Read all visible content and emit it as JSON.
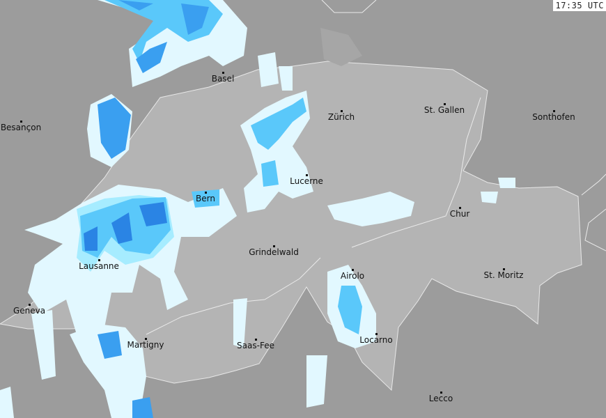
{
  "timestamp": "17:35 UTC",
  "colors": {
    "background": "#9c9c9c",
    "country": "#b4b4b4",
    "border": "#e8e8e8",
    "precip_very_light": "#e2f8ff",
    "precip_light": "#a6ecff",
    "precip_moderate": "#5ac8fa",
    "precip_heavy": "#3a9ff0",
    "precip_very_heavy": "#2a84e4"
  },
  "cities": [
    "Basel",
    "Besançon",
    "Zürich",
    "St. Gallen",
    "Sonthofen",
    "Lucerne",
    "Bern",
    "Chur",
    "Grindelwald",
    "Lausanne",
    "Airolo",
    "St. Moritz",
    "Geneva",
    "Martigny",
    "Saas-Fee",
    "Locarno",
    "Lecco"
  ]
}
